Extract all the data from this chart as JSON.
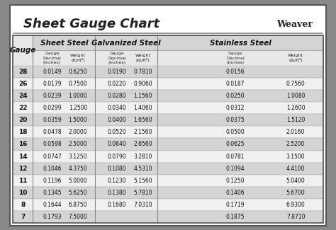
{
  "title": "Sheet Gauge Chart",
  "background_outer": "#888888",
  "background_inner": "#ffffff",
  "header_bg": "#d0d0d0",
  "row_bg_dark": "#c8c8c8",
  "row_bg_light": "#f0f0f0",
  "gauges": [
    28,
    26,
    24,
    22,
    20,
    18,
    16,
    14,
    12,
    11,
    10,
    8,
    7
  ],
  "sheet_steel": {
    "label": "Sheet Steel",
    "decimal": [
      "0.0149",
      "0.0179",
      "0.0239",
      "0.0299",
      "0.0359",
      "0.0478",
      "0.0598",
      "0.0747",
      "0.1046",
      "0.1196",
      "0.1345",
      "0.1644",
      "0.1793"
    ],
    "weight": [
      "0.6250",
      "0.7500",
      "1.0000",
      "1.2500",
      "1.5000",
      "2.0000",
      "2.5000",
      "3.1250",
      "4.3750",
      "5.0000",
      "5.6250",
      "6.8750",
      "7.5000"
    ]
  },
  "galvanized_steel": {
    "label": "Galvanized Steel",
    "decimal": [
      "0.0190",
      "0.0220",
      "0.0280",
      "0.0340",
      "0.0400",
      "0.0520",
      "0.0640",
      "0.0790",
      "0.1080",
      "0.1230",
      "0.1380",
      "0.1680",
      ""
    ],
    "weight": [
      "0.7810",
      "0.9060",
      "1.1560",
      "1.4060",
      "1.6560",
      "2.1560",
      "2.6560",
      "3.2810",
      "4.5310",
      "5.1560",
      "5.7810",
      "7.0310",
      ""
    ]
  },
  "stainless_steel": {
    "label": "Stainless Steel",
    "decimal": [
      "0.0156",
      "0.0187",
      "0.0250",
      "0.0312",
      "0.0375",
      "0.0500",
      "0.0625",
      "0.0781",
      "0.1094",
      "0.1250",
      "0.1406",
      "0.1719",
      "0.1875"
    ],
    "weight": [
      "",
      "0.7560",
      "1.0080",
      "1.2600",
      "1.5120",
      "2.0160",
      "2.5200",
      "3.1500",
      "4.4100",
      "5.0400",
      "5.6700",
      "6.9300",
      "7.8710"
    ]
  }
}
